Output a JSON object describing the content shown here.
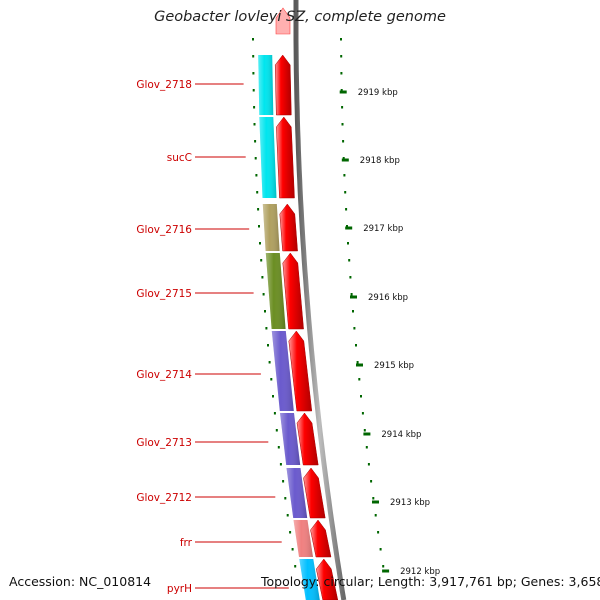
{
  "title": "Geobacter lovleyi SZ, complete genome",
  "accession": "Accession: NC_010814",
  "topology": "Topology: circular; Length: 3,917,761 bp; Genes: 3,658",
  "colors": {
    "gene_label": "#cc0000",
    "cds_arrow": "#ff0000",
    "tick": "#006600",
    "backbone": "#808080"
  },
  "scale_ticks": [
    {
      "label": "2919 kbp"
    },
    {
      "label": "2918 kbp"
    },
    {
      "label": "2917 kbp"
    },
    {
      "label": "2916 kbp"
    },
    {
      "label": "2915 kbp"
    },
    {
      "label": "2914 kbp"
    },
    {
      "label": "2913 kbp"
    },
    {
      "label": "2912 kbp"
    }
  ],
  "genes": [
    {
      "name": "Glov_2718",
      "color": "#00e5ee"
    },
    {
      "name": "sucC",
      "color": "#00e5ee"
    },
    {
      "name": "Glov_2716",
      "color": "#b0a060"
    },
    {
      "name": "Glov_2715",
      "color": "#6b8e23"
    },
    {
      "name": "Glov_2714",
      "color": "#6a5acd"
    },
    {
      "name": "Glov_2713",
      "color": "#6a5acd"
    },
    {
      "name": "Glov_2712",
      "color": "#6a5acd"
    },
    {
      "name": "frr",
      "color": "#f08080"
    },
    {
      "name": "pyrH",
      "color": "#00bfff"
    }
  ]
}
